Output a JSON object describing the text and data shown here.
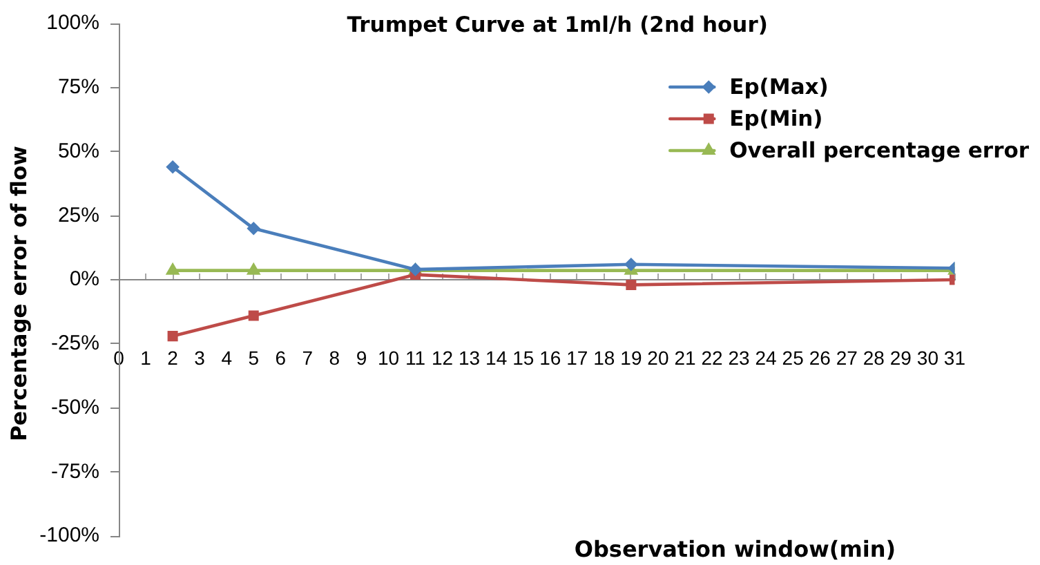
{
  "chart_data": {
    "type": "line",
    "title": "Trumpet Curve at 1ml/h (2nd hour)",
    "xlabel": "Observation window(min)",
    "ylabel": "Percentage error of flow",
    "x": [
      2,
      5,
      11,
      19,
      31
    ],
    "series": [
      {
        "name": "Ep(Max)",
        "color": "#4a7ebb",
        "marker": "diamond",
        "values": [
          44,
          20,
          4,
          6,
          4.5
        ]
      },
      {
        "name": "Ep(Min)",
        "color": "#be4b48",
        "marker": "square",
        "values": [
          -22,
          -14,
          2,
          -2,
          0
        ]
      },
      {
        "name": "Overall percentage error",
        "color": "#98b954",
        "marker": "triangle",
        "values": [
          3.6,
          3.6,
          3.6,
          3.6,
          3.6
        ]
      }
    ],
    "xlim": [
      0,
      31
    ],
    "xticks": [
      0,
      1,
      2,
      3,
      4,
      5,
      6,
      7,
      8,
      9,
      10,
      11,
      12,
      13,
      14,
      15,
      16,
      17,
      18,
      19,
      20,
      21,
      22,
      23,
      24,
      25,
      26,
      27,
      28,
      29,
      30,
      31
    ],
    "ylim": [
      -100,
      100
    ],
    "yticks": [
      {
        "value": -100,
        "label": "-100%"
      },
      {
        "value": -75,
        "label": "-75%"
      },
      {
        "value": -50,
        "label": "-50%"
      },
      {
        "value": -25,
        "label": "-25%"
      },
      {
        "value": 0,
        "label": "0%"
      },
      {
        "value": 25,
        "label": "25%"
      },
      {
        "value": 50,
        "label": "50%"
      },
      {
        "value": 75,
        "label": "75%"
      },
      {
        "value": 100,
        "label": "100%"
      }
    ],
    "legend": "top right",
    "line_style": "solid"
  }
}
